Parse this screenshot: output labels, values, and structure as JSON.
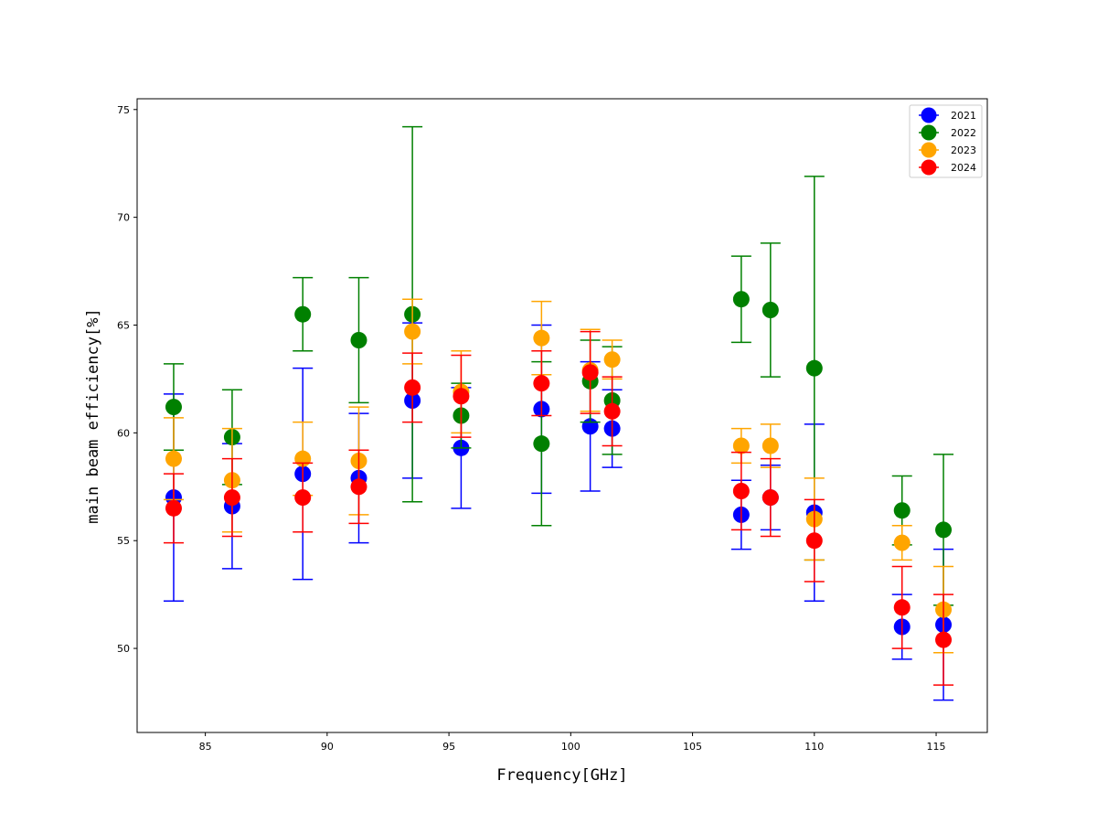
{
  "chart_data": {
    "type": "scatter",
    "title": "",
    "xlabel": "Frequency[GHz]",
    "ylabel": "main beam efficiency[%]",
    "xlim": [
      82.2,
      117.1
    ],
    "ylim": [
      46.1,
      75.5
    ],
    "xticks": [
      85,
      90,
      95,
      100,
      105,
      110,
      115
    ],
    "yticks": [
      50,
      55,
      60,
      65,
      70,
      75
    ],
    "grid": false,
    "legend_position": "top-right",
    "series": [
      {
        "name": "2021",
        "color": "#0000ff",
        "points": [
          {
            "x": 83.7,
            "y": 57.0,
            "err_low": 4.8,
            "err_high": 4.8
          },
          {
            "x": 86.1,
            "y": 56.6,
            "err_low": 2.9,
            "err_high": 2.9
          },
          {
            "x": 89.0,
            "y": 58.1,
            "err_low": 4.9,
            "err_high": 4.9
          },
          {
            "x": 91.3,
            "y": 57.9,
            "err_low": 3.0,
            "err_high": 3.0
          },
          {
            "x": 93.5,
            "y": 61.5,
            "err_low": 3.6,
            "err_high": 3.6
          },
          {
            "x": 95.5,
            "y": 59.3,
            "err_low": 2.8,
            "err_high": 2.8
          },
          {
            "x": 98.8,
            "y": 61.1,
            "err_low": 3.9,
            "err_high": 3.9
          },
          {
            "x": 100.8,
            "y": 60.3,
            "err_low": 3.0,
            "err_high": 3.0
          },
          {
            "x": 101.7,
            "y": 60.2,
            "err_low": 1.8,
            "err_high": 1.8
          },
          {
            "x": 107.0,
            "y": 56.2,
            "err_low": 1.6,
            "err_high": 1.6
          },
          {
            "x": 108.2,
            "y": 57.0,
            "err_low": 1.5,
            "err_high": 1.5
          },
          {
            "x": 110.0,
            "y": 56.3,
            "err_low": 4.1,
            "err_high": 4.1
          },
          {
            "x": 113.6,
            "y": 51.0,
            "err_low": 1.5,
            "err_high": 1.5
          },
          {
            "x": 115.3,
            "y": 51.1,
            "err_low": 3.5,
            "err_high": 3.5
          }
        ]
      },
      {
        "name": "2022",
        "color": "#008000",
        "points": [
          {
            "x": 83.7,
            "y": 61.2,
            "err_low": 2.0,
            "err_high": 2.0
          },
          {
            "x": 86.1,
            "y": 59.8,
            "err_low": 2.2,
            "err_high": 2.2
          },
          {
            "x": 89.0,
            "y": 65.5,
            "err_low": 1.7,
            "err_high": 1.7
          },
          {
            "x": 91.3,
            "y": 64.3,
            "err_low": 2.9,
            "err_high": 2.9
          },
          {
            "x": 93.5,
            "y": 65.5,
            "err_low": 8.7,
            "err_high": 8.7
          },
          {
            "x": 95.5,
            "y": 60.8,
            "err_low": 1.5,
            "err_high": 1.5
          },
          {
            "x": 98.8,
            "y": 59.5,
            "err_low": 3.8,
            "err_high": 3.8
          },
          {
            "x": 100.8,
            "y": 62.4,
            "err_low": 1.9,
            "err_high": 1.9
          },
          {
            "x": 101.7,
            "y": 61.5,
            "err_low": 2.5,
            "err_high": 2.5
          },
          {
            "x": 107.0,
            "y": 66.2,
            "err_low": 2.0,
            "err_high": 2.0
          },
          {
            "x": 108.2,
            "y": 65.7,
            "err_low": 3.1,
            "err_high": 3.1
          },
          {
            "x": 110.0,
            "y": 63.0,
            "err_low": 8.9,
            "err_high": 8.9
          },
          {
            "x": 113.6,
            "y": 56.4,
            "err_low": 1.6,
            "err_high": 1.6
          },
          {
            "x": 115.3,
            "y": 55.5,
            "err_low": 3.5,
            "err_high": 3.5
          }
        ]
      },
      {
        "name": "2023",
        "color": "#ffa500",
        "points": [
          {
            "x": 83.7,
            "y": 58.8,
            "err_low": 1.9,
            "err_high": 1.9
          },
          {
            "x": 86.1,
            "y": 57.8,
            "err_low": 2.4,
            "err_high": 2.4
          },
          {
            "x": 89.0,
            "y": 58.8,
            "err_low": 1.7,
            "err_high": 1.7
          },
          {
            "x": 91.3,
            "y": 58.7,
            "err_low": 2.5,
            "err_high": 2.5
          },
          {
            "x": 93.5,
            "y": 64.7,
            "err_low": 1.5,
            "err_high": 1.5
          },
          {
            "x": 95.5,
            "y": 61.9,
            "err_low": 1.9,
            "err_high": 1.9
          },
          {
            "x": 98.8,
            "y": 64.4,
            "err_low": 1.7,
            "err_high": 1.7
          },
          {
            "x": 100.8,
            "y": 62.9,
            "err_low": 1.9,
            "err_high": 1.9
          },
          {
            "x": 101.7,
            "y": 63.4,
            "err_low": 0.9,
            "err_high": 0.9
          },
          {
            "x": 107.0,
            "y": 59.4,
            "err_low": 0.8,
            "err_high": 0.8
          },
          {
            "x": 108.2,
            "y": 59.4,
            "err_low": 1.0,
            "err_high": 1.0
          },
          {
            "x": 110.0,
            "y": 56.0,
            "err_low": 1.9,
            "err_high": 1.9
          },
          {
            "x": 113.6,
            "y": 54.9,
            "err_low": 0.8,
            "err_high": 0.8
          },
          {
            "x": 115.3,
            "y": 51.8,
            "err_low": 2.0,
            "err_high": 2.0
          }
        ]
      },
      {
        "name": "2024",
        "color": "#ff0000",
        "points": [
          {
            "x": 83.7,
            "y": 56.5,
            "err_low": 1.6,
            "err_high": 1.6
          },
          {
            "x": 86.1,
            "y": 57.0,
            "err_low": 1.8,
            "err_high": 1.8
          },
          {
            "x": 89.0,
            "y": 57.0,
            "err_low": 1.6,
            "err_high": 1.6
          },
          {
            "x": 91.3,
            "y": 57.5,
            "err_low": 1.7,
            "err_high": 1.7
          },
          {
            "x": 93.5,
            "y": 62.1,
            "err_low": 1.6,
            "err_high": 1.6
          },
          {
            "x": 95.5,
            "y": 61.7,
            "err_low": 1.9,
            "err_high": 1.9
          },
          {
            "x": 98.8,
            "y": 62.3,
            "err_low": 1.5,
            "err_high": 1.5
          },
          {
            "x": 100.8,
            "y": 62.8,
            "err_low": 1.9,
            "err_high": 1.9
          },
          {
            "x": 101.7,
            "y": 61.0,
            "err_low": 1.6,
            "err_high": 1.6
          },
          {
            "x": 107.0,
            "y": 57.3,
            "err_low": 1.8,
            "err_high": 1.8
          },
          {
            "x": 108.2,
            "y": 57.0,
            "err_low": 1.8,
            "err_high": 1.8
          },
          {
            "x": 110.0,
            "y": 55.0,
            "err_low": 1.9,
            "err_high": 1.9
          },
          {
            "x": 113.6,
            "y": 51.9,
            "err_low": 1.9,
            "err_high": 1.9
          },
          {
            "x": 115.3,
            "y": 50.4,
            "err_low": 2.1,
            "err_high": 2.1
          }
        ]
      }
    ]
  }
}
